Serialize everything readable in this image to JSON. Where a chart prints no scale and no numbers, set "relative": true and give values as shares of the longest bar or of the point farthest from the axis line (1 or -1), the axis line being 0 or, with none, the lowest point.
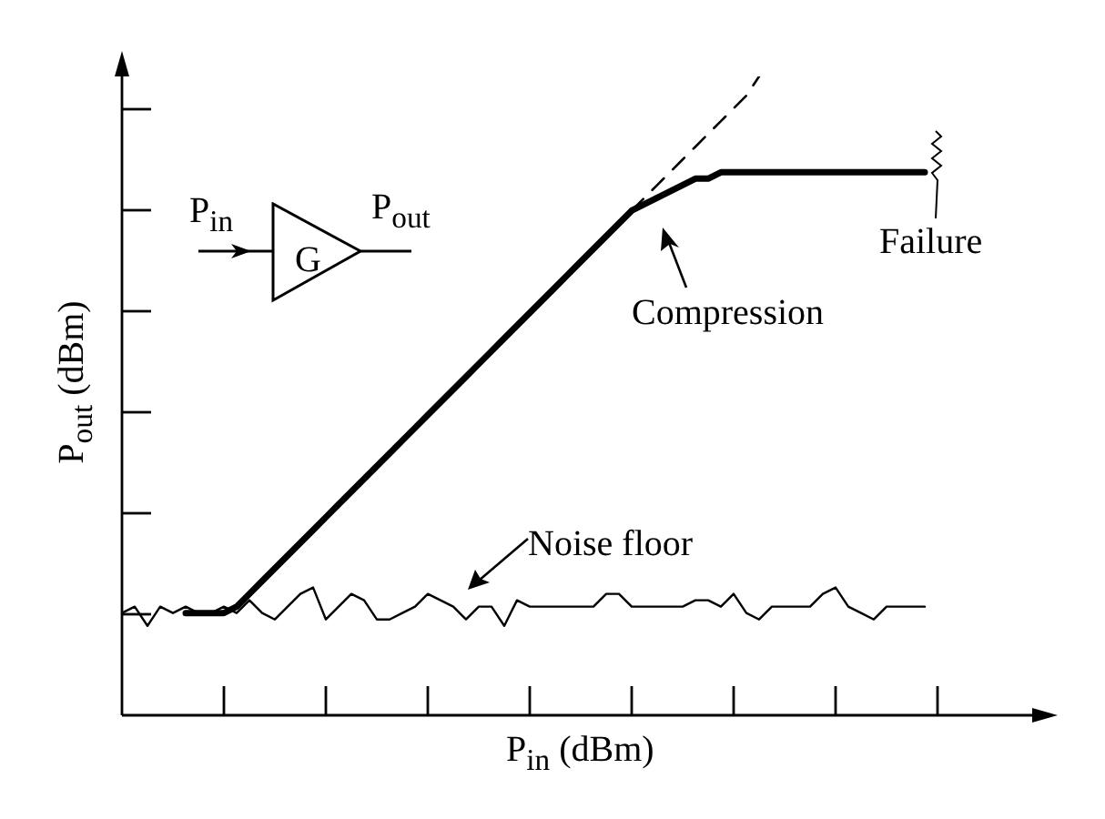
{
  "chart_data": {
    "type": "line",
    "relative": true,
    "xlabel": "P$_{in}$ (dBm)",
    "ylabel": "P$_{out}$ (dBm)",
    "categories": [
      null,
      null,
      null,
      null,
      null,
      null,
      null,
      null,
      null,
      null,
      null,
      null,
      null,
      null,
      null,
      null,
      null,
      null,
      null,
      null,
      null,
      null,
      null,
      null,
      null,
      null,
      null,
      null,
      null,
      null,
      null,
      null,
      null,
      null,
      null,
      null,
      null,
      null,
      null,
      null,
      null,
      null,
      null,
      null,
      null,
      null,
      null,
      null,
      null,
      null,
      null,
      null,
      null,
      null,
      null,
      null,
      null,
      null,
      null,
      null,
      null,
      null,
      null,
      null,
      null
    ],
    "series": [
      {
        "color": "#000000",
        "line_style": "solid",
        "values": [
          null,
          null,
          null,
          null,
          null,
          0.16,
          0.16,
          0.16,
          0.16,
          0.17,
          0.19,
          0.21,
          0.23,
          0.25,
          0.27,
          0.29,
          0.31,
          0.33,
          0.35,
          0.37,
          0.39,
          0.41,
          0.43,
          0.45,
          0.47,
          0.49,
          0.51,
          0.53,
          0.55,
          0.57,
          0.59,
          0.61,
          0.63,
          0.65,
          0.67,
          0.69,
          0.71,
          0.73,
          0.75,
          0.77,
          0.79,
          0.8,
          0.81,
          0.82,
          0.83,
          0.84,
          0.84,
          0.85,
          0.85,
          0.85,
          0.85,
          0.85,
          0.85,
          0.85,
          0.85,
          0.85,
          0.85,
          0.85,
          0.85,
          0.85,
          0.85,
          0.85,
          0.85,
          0.85,
          null
        ]
      },
      {
        "color": "#000000",
        "line_style": "dashed",
        "values": [
          null,
          null,
          null,
          null,
          null,
          null,
          null,
          null,
          null,
          null,
          null,
          null,
          null,
          null,
          null,
          null,
          null,
          null,
          null,
          null,
          null,
          null,
          null,
          null,
          null,
          null,
          null,
          null,
          null,
          null,
          null,
          null,
          null,
          null,
          null,
          null,
          null,
          null,
          null,
          null,
          0.79,
          0.81,
          0.83,
          0.85,
          0.87,
          0.89,
          0.91,
          0.93,
          0.95,
          0.97,
          1,
          null,
          null,
          null,
          null,
          null,
          null,
          null,
          null,
          null,
          null,
          null,
          null,
          null,
          null
        ]
      },
      {
        "color": "#000000",
        "line_style": "solid",
        "values": [
          0.16,
          0.17,
          0.14,
          0.17,
          0.16,
          0.17,
          0.16,
          0.16,
          0.17,
          0.16,
          0.18,
          0.16,
          0.15,
          0.17,
          0.19,
          0.2,
          0.15,
          0.17,
          0.19,
          0.18,
          0.15,
          0.15,
          0.16,
          0.17,
          0.19,
          0.18,
          0.17,
          0.15,
          0.17,
          0.17,
          0.14,
          0.18,
          0.17,
          0.17,
          0.17,
          0.17,
          0.17,
          0.17,
          0.19,
          0.19,
          0.17,
          0.17,
          0.17,
          0.17,
          0.17,
          0.18,
          0.18,
          0.17,
          0.19,
          0.16,
          0.15,
          0.17,
          0.17,
          0.17,
          0.17,
          0.19,
          0.2,
          0.17,
          0.16,
          0.15,
          0.17,
          0.17,
          0.17,
          0.17,
          null
        ]
      }
    ],
    "annotations": [
      "P$_{in}$",
      "G",
      "P$_{out}$",
      "Noise floor",
      "Compression",
      "Failure"
    ],
    "marker": "none",
    "legend": false,
    "grid": false
  }
}
